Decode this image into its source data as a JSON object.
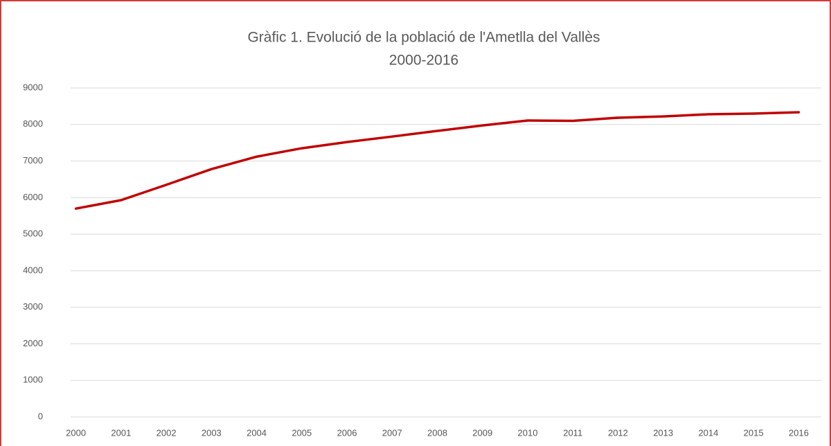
{
  "chart_data": {
    "type": "line",
    "title": "Gràfic 1. Evolució de la població de l'Ametlla del Vallès",
    "subtitle": "2000-2016",
    "categories": [
      "2000",
      "2001",
      "2002",
      "2003",
      "2004",
      "2005",
      "2006",
      "2007",
      "2008",
      "2009",
      "2010",
      "2011",
      "2012",
      "2013",
      "2014",
      "2015",
      "2016"
    ],
    "series": [
      {
        "color": "#c00000",
        "values": [
          5700,
          5930,
          6350,
          6780,
          7120,
          7350,
          7520,
          7670,
          7825,
          7975,
          8110,
          8100,
          8185,
          8220,
          8280,
          8300,
          8335
        ]
      }
    ],
    "ylim": [
      0,
      9000
    ],
    "yticks": [
      0,
      1000,
      2000,
      3000,
      4000,
      5000,
      6000,
      7000,
      8000,
      9000
    ],
    "grid": true
  }
}
